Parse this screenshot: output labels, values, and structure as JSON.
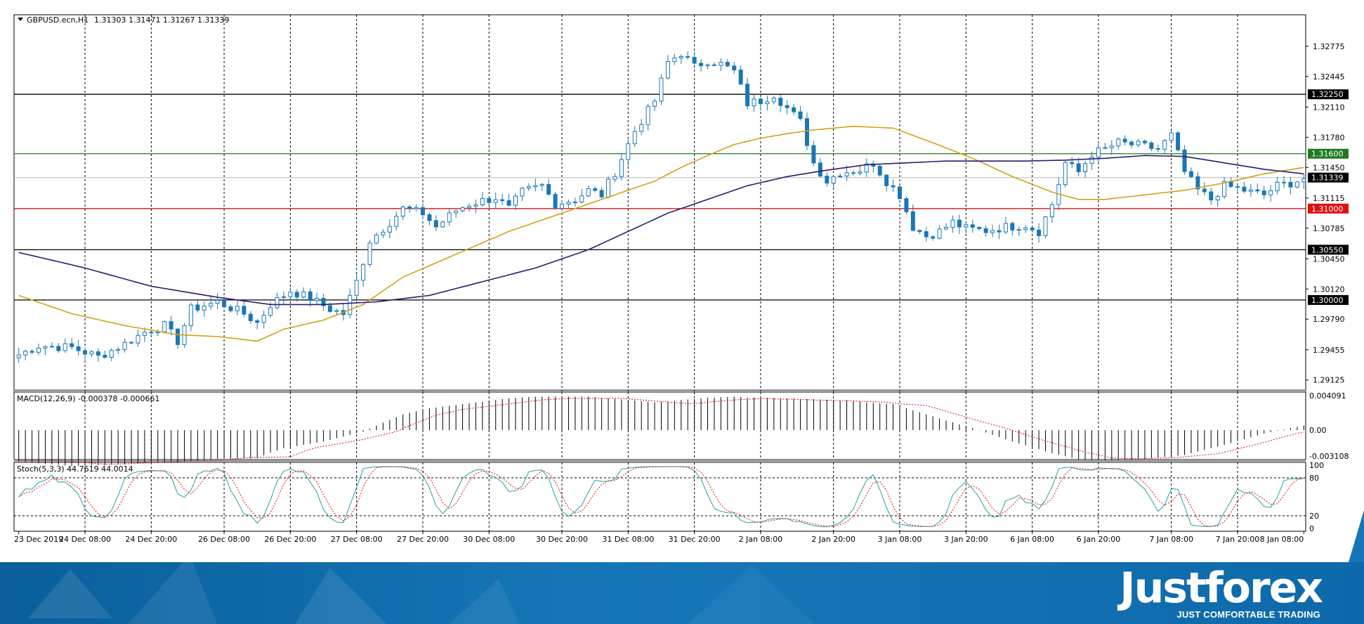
{
  "chart_data": [
    {
      "type": "candlestick",
      "title": "GBPUSD.ecn,H1",
      "ohlc_readout": "1.31303 1.31471 1.31267 1.31339",
      "y_ticks": [
        "1.32775",
        "1.32445",
        "1.32110",
        "1.31780",
        "1.31450",
        "1.31115",
        "1.30785",
        "1.30450",
        "1.30120",
        "1.29790",
        "1.29455",
        "1.29125"
      ],
      "ylim": [
        1.29,
        1.3312
      ],
      "x_ticks": [
        "23 Dec 2019",
        "24 Dec 08:00",
        "24 Dec 20:00",
        "26 Dec 08:00",
        "26 Dec 20:00",
        "27 Dec 08:00",
        "27 Dec 20:00",
        "30 Dec 08:00",
        "30 Dec 20:00",
        "31 Dec 08:00",
        "31 Dec 20:00",
        "2 Jan 08:00",
        "2 Jan 20:00",
        "3 Jan 08:00",
        "3 Jan 20:00",
        "6 Jan 08:00",
        "6 Jan 20:00",
        "7 Jan 08:00",
        "7 Jan 20:00",
        "8 Jan 08:00"
      ],
      "levels": [
        {
          "value": 1.3225,
          "label": "1.32250",
          "color": "#000000"
        },
        {
          "value": 1.316,
          "label": "1.31600",
          "color": "#1f7a1f"
        },
        {
          "value": 1.31339,
          "label": "1.31339",
          "color": "#000000"
        },
        {
          "value": 1.31,
          "label": "1.31000",
          "color": "#e01010"
        },
        {
          "value": 1.3055,
          "label": "1.30550",
          "color": "#000000"
        },
        {
          "value": 1.3,
          "label": "1.30000",
          "color": "#000000"
        }
      ],
      "current_price": 1.31339,
      "candle_color": "#1b76b6",
      "ma_fast_color": "#d4a017",
      "ma_slow_color": "#2e1a6e",
      "path_points": [
        [
          0,
          1.294
        ],
        [
          3,
          1.295
        ],
        [
          8,
          1.2948
        ],
        [
          12,
          1.2938
        ],
        [
          16,
          1.2952
        ],
        [
          19,
          1.2965
        ],
        [
          22,
          1.2972
        ],
        [
          24,
          1.2955
        ],
        [
          26,
          1.299
        ],
        [
          30,
          1.2998
        ],
        [
          34,
          1.2985
        ],
        [
          36,
          1.2975
        ],
        [
          38,
          1.2995
        ],
        [
          41,
          1.301
        ],
        [
          44,
          1.3002
        ],
        [
          47,
          1.299
        ],
        [
          49,
          1.2985
        ],
        [
          51,
          1.302
        ],
        [
          53,
          1.3065
        ],
        [
          56,
          1.3085
        ],
        [
          58,
          1.31
        ],
        [
          61,
          1.3095
        ],
        [
          63,
          1.308
        ],
        [
          66,
          1.3098
        ],
        [
          68,
          1.3105
        ],
        [
          72,
          1.3112
        ],
        [
          74,
          1.31
        ],
        [
          76,
          1.3118
        ],
        [
          79,
          1.3125
        ],
        [
          81,
          1.3105
        ],
        [
          84,
          1.311
        ],
        [
          86,
          1.312
        ],
        [
          88,
          1.3115
        ],
        [
          90,
          1.314
        ],
        [
          93,
          1.3185
        ],
        [
          96,
          1.3218
        ],
        [
          98,
          1.326
        ],
        [
          100,
          1.327
        ],
        [
          102,
          1.3255
        ],
        [
          104,
          1.3262
        ],
        [
          106,
          1.3258
        ],
        [
          108,
          1.325
        ],
        [
          110,
          1.3215
        ],
        [
          112,
          1.3218
        ],
        [
          114,
          1.3225
        ],
        [
          116,
          1.321
        ],
        [
          118,
          1.3195
        ],
        [
          120,
          1.315
        ],
        [
          122,
          1.313
        ],
        [
          124,
          1.314
        ],
        [
          127,
          1.3142
        ],
        [
          129,
          1.315
        ],
        [
          131,
          1.313
        ],
        [
          133,
          1.3115
        ],
        [
          135,
          1.308
        ],
        [
          137,
          1.307
        ],
        [
          139,
          1.3075
        ],
        [
          141,
          1.3085
        ],
        [
          143,
          1.3078
        ],
        [
          146,
          1.3076
        ],
        [
          149,
          1.308
        ],
        [
          152,
          1.3082
        ],
        [
          154,
          1.3075
        ],
        [
          156,
          1.3105
        ],
        [
          158,
          1.315
        ],
        [
          160,
          1.314
        ],
        [
          162,
          1.316
        ],
        [
          164,
          1.3165
        ],
        [
          166,
          1.3172
        ],
        [
          168,
          1.317
        ],
        [
          170,
          1.3168
        ],
        [
          172,
          1.3165
        ],
        [
          174,
          1.318
        ],
        [
          176,
          1.314
        ],
        [
          178,
          1.312
        ],
        [
          180,
          1.311
        ],
        [
          182,
          1.3125
        ],
        [
          184,
          1.3122
        ],
        [
          186,
          1.3118
        ],
        [
          188,
          1.3115
        ],
        [
          190,
          1.3125
        ],
        [
          192,
          1.3128
        ],
        [
          194,
          1.3133
        ]
      ],
      "ma_fast": [
        [
          0,
          1.3005
        ],
        [
          8,
          1.2985
        ],
        [
          16,
          1.2972
        ],
        [
          24,
          1.2962
        ],
        [
          30,
          1.296
        ],
        [
          36,
          1.2955
        ],
        [
          40,
          1.2968
        ],
        [
          46,
          1.2978
        ],
        [
          52,
          1.2995
        ],
        [
          58,
          1.3025
        ],
        [
          66,
          1.305
        ],
        [
          74,
          1.3075
        ],
        [
          82,
          1.3095
        ],
        [
          90,
          1.3115
        ],
        [
          96,
          1.313
        ],
        [
          100,
          1.3145
        ],
        [
          104,
          1.3158
        ],
        [
          108,
          1.317
        ],
        [
          112,
          1.3177
        ],
        [
          116,
          1.3182
        ],
        [
          120,
          1.3186
        ],
        [
          126,
          1.319
        ],
        [
          132,
          1.3188
        ],
        [
          138,
          1.3172
        ],
        [
          144,
          1.3155
        ],
        [
          150,
          1.3135
        ],
        [
          156,
          1.3118
        ],
        [
          160,
          1.311
        ],
        [
          164,
          1.311
        ],
        [
          170,
          1.3115
        ],
        [
          176,
          1.312
        ],
        [
          182,
          1.3128
        ],
        [
          188,
          1.3138
        ],
        [
          194,
          1.3145
        ]
      ],
      "ma_slow": [
        [
          0,
          1.3052
        ],
        [
          10,
          1.3035
        ],
        [
          20,
          1.3015
        ],
        [
          30,
          1.3003
        ],
        [
          38,
          1.2995
        ],
        [
          46,
          1.2995
        ],
        [
          54,
          1.2998
        ],
        [
          62,
          1.3005
        ],
        [
          70,
          1.302
        ],
        [
          78,
          1.3035
        ],
        [
          86,
          1.3055
        ],
        [
          92,
          1.3075
        ],
        [
          98,
          1.3095
        ],
        [
          104,
          1.311
        ],
        [
          110,
          1.3125
        ],
        [
          116,
          1.3135
        ],
        [
          122,
          1.3142
        ],
        [
          128,
          1.3148
        ],
        [
          134,
          1.315
        ],
        [
          140,
          1.3152
        ],
        [
          146,
          1.3152
        ],
        [
          152,
          1.3152
        ],
        [
          158,
          1.3153
        ],
        [
          164,
          1.3155
        ],
        [
          170,
          1.3158
        ],
        [
          176,
          1.3157
        ],
        [
          182,
          1.315
        ],
        [
          188,
          1.3143
        ],
        [
          194,
          1.3138
        ]
      ]
    },
    {
      "type": "bar",
      "title": "MACD(12,26,9) -0.000378 -0.000661",
      "y_ticks": [
        "0.004091",
        "0.00",
        "-0.003108"
      ],
      "ylim": [
        -0.0031,
        0.0041
      ],
      "bar_color": "#000000",
      "signal_color": "#e01010"
    },
    {
      "type": "line",
      "title": "Stoch(5,3,3) 44.7619 44.0014",
      "y_ticks": [
        "100",
        "80",
        "20",
        "0"
      ],
      "ylim": [
        0,
        100
      ],
      "levels": [
        80,
        20
      ],
      "main_color": "#20a4a4",
      "signal_color": "#e01010"
    }
  ],
  "footer": {
    "brand": "Justforex",
    "tagline": "JUST COMFORTABLE TRADING"
  }
}
